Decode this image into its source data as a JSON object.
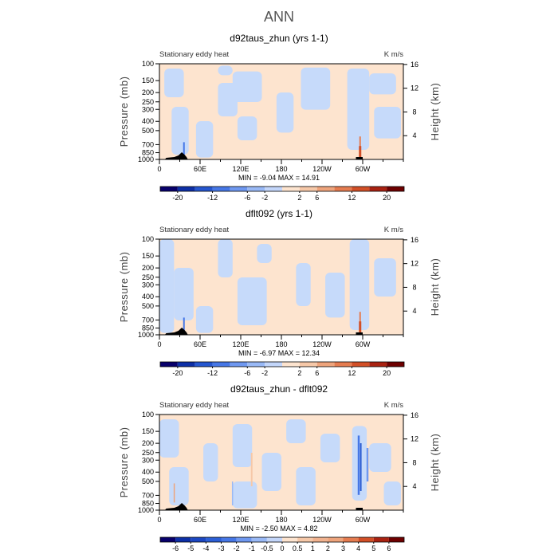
{
  "figure_title": "ANN",
  "chart_data": [
    {
      "type": "contour",
      "title": "d92taus_zhun (yrs 1-1)",
      "left_label": "Stationary eddy heat",
      "units": "K m/s",
      "ylabel": "Pressure (mb)",
      "ylabel_right": "Height (km)",
      "x_ticks": [
        "0",
        "60E",
        "120E",
        "180",
        "120W",
        "60W"
      ],
      "x_tick_lon": [
        0,
        60,
        120,
        180,
        240,
        300
      ],
      "y_ticks": [
        "100",
        "150",
        "200",
        "250",
        "300",
        "400",
        "500",
        "700",
        "850",
        "1000"
      ],
      "y_tick_p": [
        100,
        150,
        200,
        250,
        300,
        400,
        500,
        700,
        850,
        1000
      ],
      "height_ticks": [
        "4",
        "8",
        "12",
        "16"
      ],
      "height_km": [
        4,
        8,
        12,
        16
      ],
      "stats": "MIN =   -9.04   MAX =   14.91",
      "min": -9.04,
      "max": 14.91,
      "colorbar_labels": [
        "-20",
        "-12",
        "-6",
        "-2",
        "2",
        "6",
        "12",
        "20"
      ],
      "colorbar_colors": [
        "#08006b",
        "#0d2fa6",
        "#2556cf",
        "#4677e6",
        "#6f98f0",
        "#99b9f6",
        "#c3d6fa",
        "#fde4cf",
        "#f6c8a8",
        "#eea47c",
        "#e57c50",
        "#d24f27",
        "#a92211",
        "#6e0000"
      ]
    },
    {
      "type": "contour",
      "title": "dflt092 (yrs 1-1)",
      "left_label": "Stationary eddy heat",
      "units": "K m/s",
      "ylabel": "Pressure (mb)",
      "ylabel_right": "Height (km)",
      "x_ticks": [
        "0",
        "60E",
        "120E",
        "180",
        "120W",
        "60W"
      ],
      "x_tick_lon": [
        0,
        60,
        120,
        180,
        240,
        300
      ],
      "y_ticks": [
        "100",
        "150",
        "200",
        "250",
        "300",
        "400",
        "500",
        "700",
        "850",
        "1000"
      ],
      "y_tick_p": [
        100,
        150,
        200,
        250,
        300,
        400,
        500,
        700,
        850,
        1000
      ],
      "height_ticks": [
        "4",
        "8",
        "12",
        "16"
      ],
      "height_km": [
        4,
        8,
        12,
        16
      ],
      "stats": "MIN =   -6.97   MAX =   12.34",
      "min": -6.97,
      "max": 12.34,
      "colorbar_labels": [
        "-20",
        "-12",
        "-6",
        "-2",
        "2",
        "6",
        "12",
        "20"
      ],
      "colorbar_colors": [
        "#08006b",
        "#0d2fa6",
        "#2556cf",
        "#4677e6",
        "#6f98f0",
        "#99b9f6",
        "#c3d6fa",
        "#fde4cf",
        "#f6c8a8",
        "#eea47c",
        "#e57c50",
        "#d24f27",
        "#a92211",
        "#6e0000"
      ]
    },
    {
      "type": "contour",
      "title": "d92taus_zhun - dflt092",
      "left_label": "Stationary eddy heat",
      "units": "K m/s",
      "ylabel": "Pressure (mb)",
      "ylabel_right": "Height (km)",
      "x_ticks": [
        "0",
        "60E",
        "120E",
        "180",
        "120W",
        "60W"
      ],
      "x_tick_lon": [
        0,
        60,
        120,
        180,
        240,
        300
      ],
      "y_ticks": [
        "100",
        "150",
        "200",
        "250",
        "300",
        "400",
        "500",
        "700",
        "850",
        "1000"
      ],
      "y_tick_p": [
        100,
        150,
        200,
        250,
        300,
        400,
        500,
        700,
        850,
        1000
      ],
      "height_ticks": [
        "4",
        "8",
        "12",
        "16"
      ],
      "height_km": [
        4,
        8,
        12,
        16
      ],
      "stats": "MIN =   -2.50   MAX =   4.82",
      "min": -2.5,
      "max": 4.82,
      "colorbar_labels": [
        "-6",
        "-5",
        "-4",
        "-3",
        "-2",
        "-1",
        "-0.5",
        "0",
        "0.5",
        "1",
        "2",
        "3",
        "4",
        "5",
        "6"
      ],
      "colorbar_colors": [
        "#08006b",
        "#0d2fa6",
        "#1c47c2",
        "#2c5fd6",
        "#4677e6",
        "#6f98f0",
        "#99b9f6",
        "#c3d6fa",
        "#fde4cf",
        "#f6c8a8",
        "#f1b28f",
        "#eea47c",
        "#e57c50",
        "#d24f27",
        "#a92211",
        "#6e0000"
      ]
    }
  ]
}
